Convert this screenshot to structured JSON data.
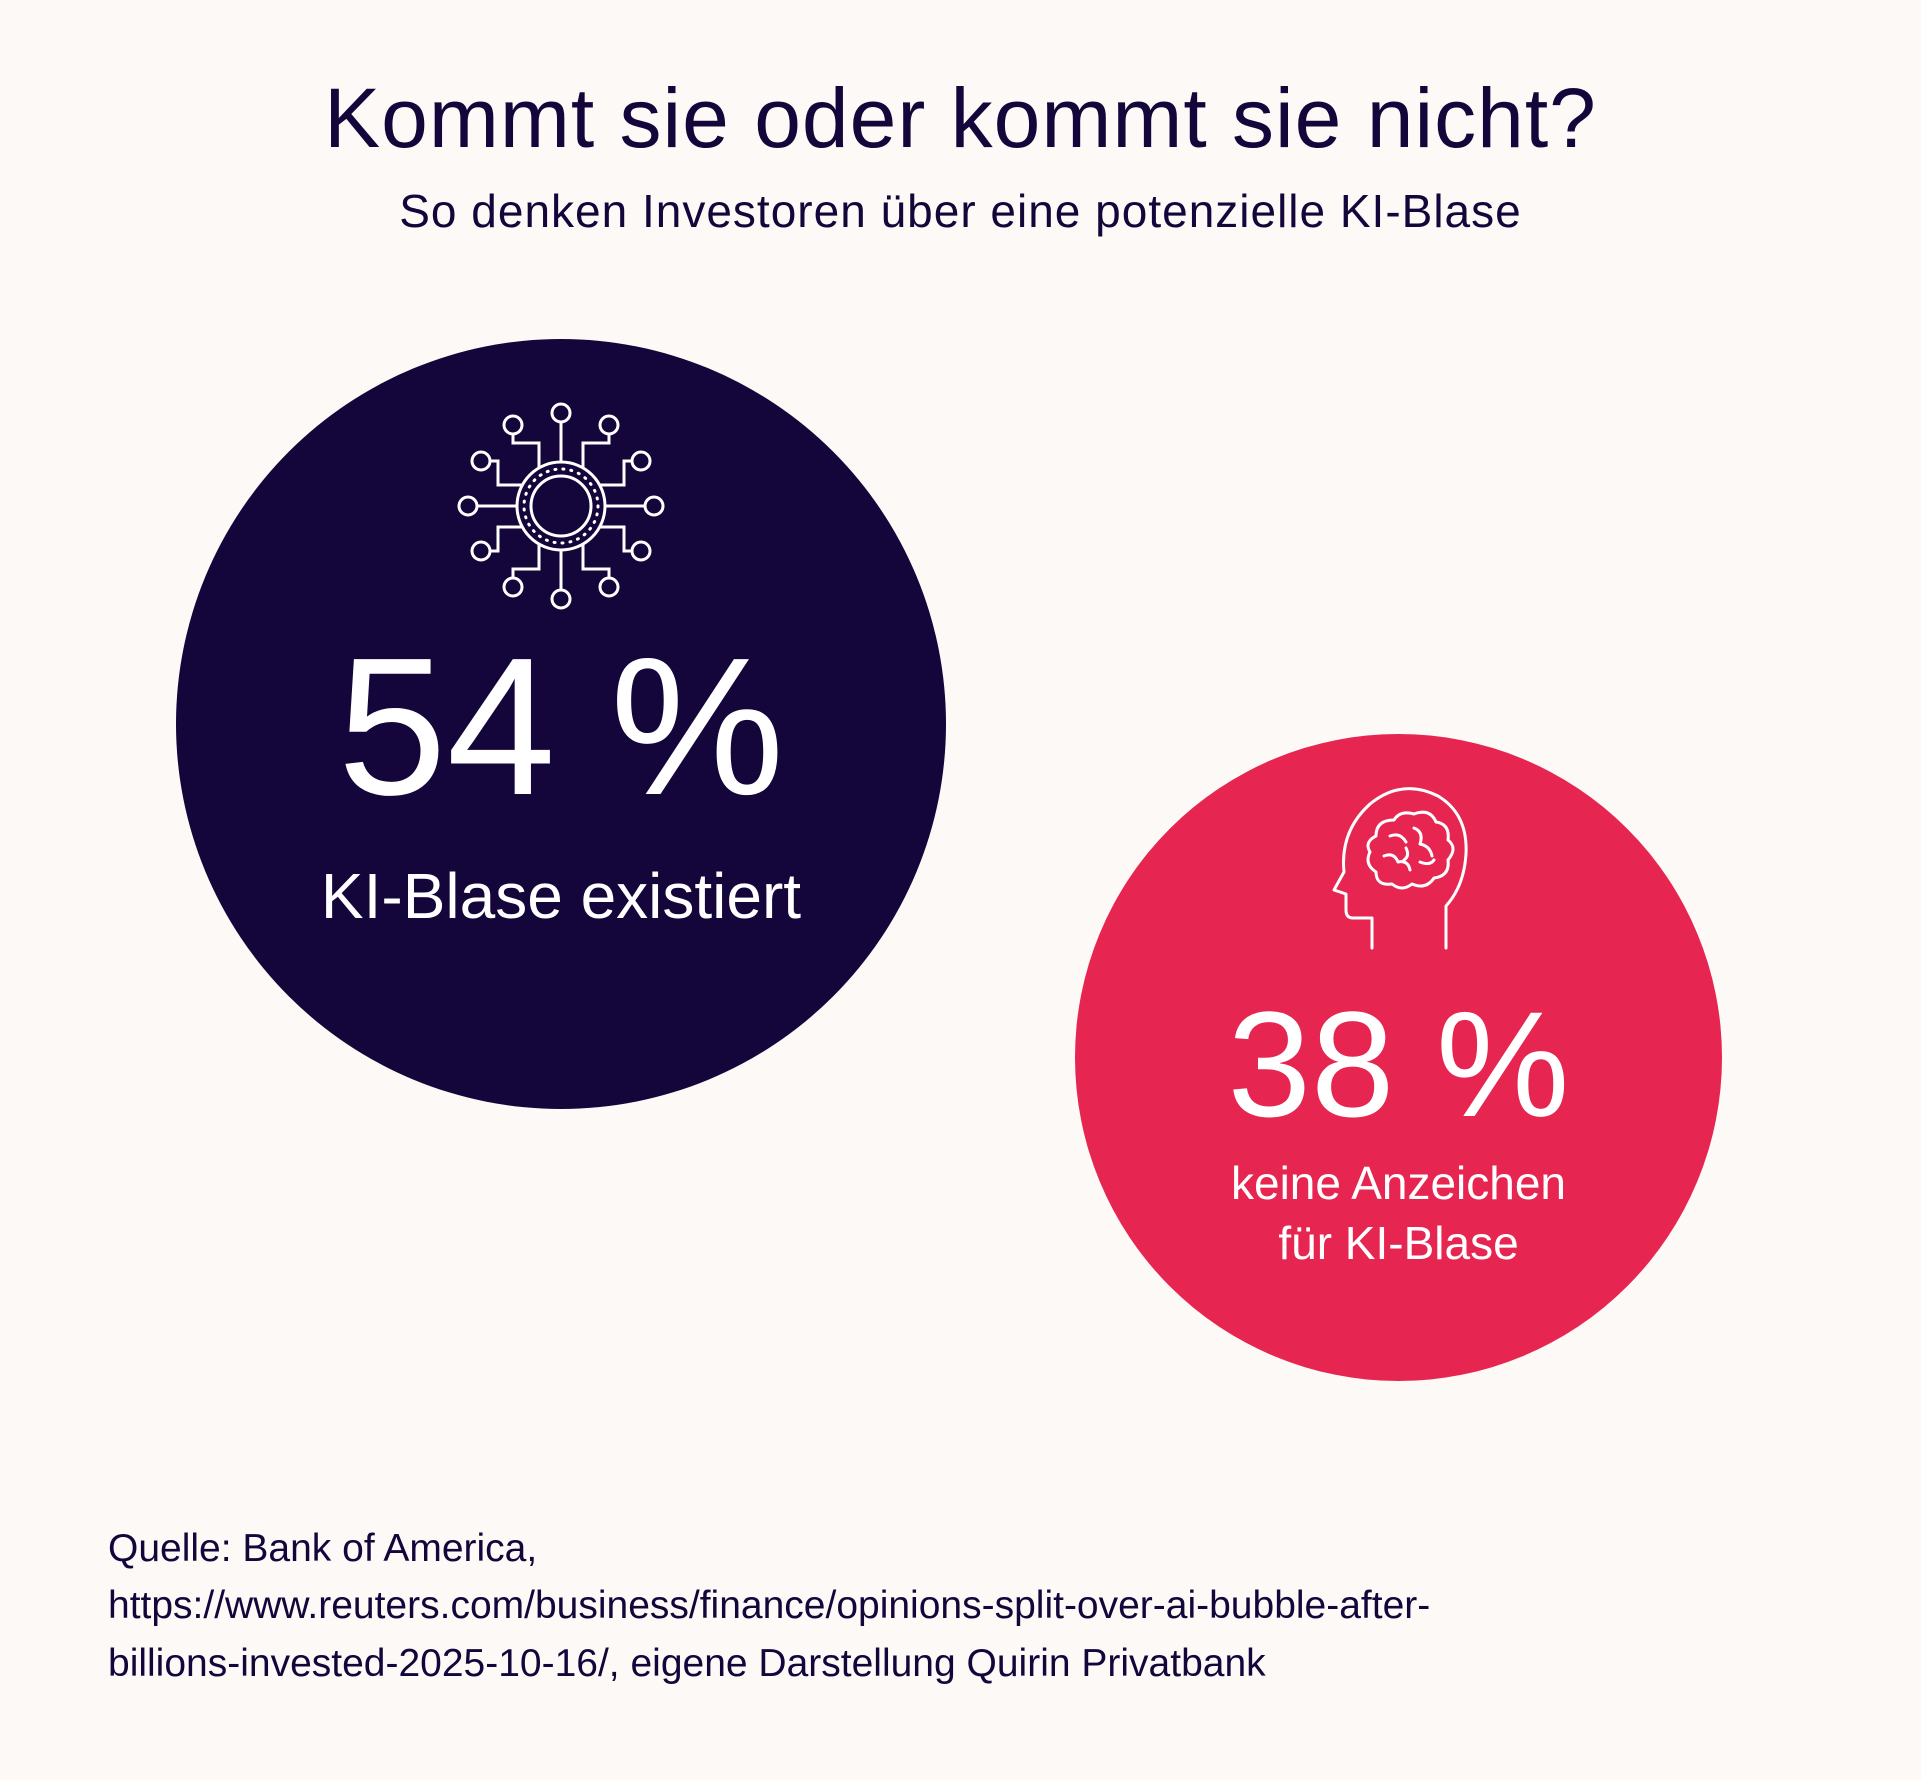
{
  "chart_data": {
    "type": "bubble",
    "title": "Kommt sie oder kommt sie nicht?",
    "subtitle": "So denken Investoren über eine potenzielle  KI-Blase",
    "unit": "%",
    "items": [
      {
        "value": 54,
        "value_label": "54 %",
        "label_lines": [
          "KI-Blase existiert"
        ],
        "color": "#14063b",
        "icon": "ai-chip-icon"
      },
      {
        "value": 38,
        "value_label": "38 %",
        "label_lines": [
          "keine Anzeichen",
          "für KI-Blase"
        ],
        "color": "#e62550",
        "icon": "brain-head-icon"
      }
    ]
  },
  "source": {
    "lines": [
      "Quelle: Bank of America,",
      "https://www.reuters.com/business/finance/opinions-split-over-ai-bubble-after-",
      "billions-invested-2025-10-16/, eigene Darstellung Quirin Privatbank"
    ]
  }
}
